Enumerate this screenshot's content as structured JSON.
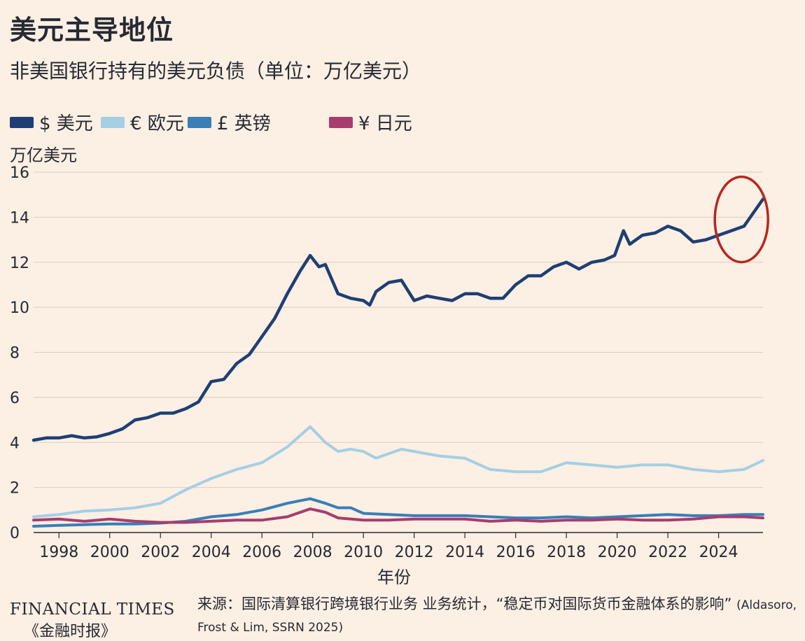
{
  "header": {
    "title": "美元主导地位",
    "subtitle": "非美国银行持有的美元负债（单位：万亿美元）"
  },
  "legend": [
    {
      "label": "$ 美元",
      "color": "#1f3f73"
    },
    {
      "label": "€ 欧元",
      "color": "#a4cfe4"
    },
    {
      "label": "£ 英镑",
      "color": "#3a7eb6"
    },
    {
      "label": "¥ 日元",
      "color": "#a63d6e"
    }
  ],
  "annotation_color": "#b5281f",
  "footer": {
    "brand": "FINANCIAL TIMES",
    "brand_cn": "《金融时报》",
    "source_cn": "来源：国际清算银行跨境银行业务  业务统计，“稳定币对国际货币金融体系的影响”",
    "source_en": "(Aldasoro, Frost & Lim, SSRN 2025)"
  },
  "chart_data": {
    "type": "line",
    "title": "美元主导地位",
    "subtitle": "非美国银行持有的美元负债（单位：万亿美元）",
    "ylabel": "万亿美元",
    "xlabel": "年份",
    "xlim": [
      1997,
      2025.75
    ],
    "ylim": [
      0,
      16
    ],
    "x_ticks": [
      "1998",
      "2000",
      "2002",
      "2004",
      "2006",
      "2008",
      "2010",
      "2012",
      "2014",
      "2016",
      "2018",
      "2020",
      "2022",
      "2024"
    ],
    "y_ticks": [
      "0",
      "2",
      "4",
      "6",
      "8",
      "10",
      "12",
      "14",
      "16"
    ],
    "grid": "horizontal",
    "legend_position": "top-left",
    "series": [
      {
        "name": "$ 美元",
        "x": [
          1997,
          1997.5,
          1998,
          1998.5,
          1999,
          1999.5,
          2000,
          2000.5,
          2001,
          2001.5,
          2002,
          2002.5,
          2003,
          2003.5,
          2004,
          2004.5,
          2005,
          2005.5,
          2006,
          2006.5,
          2007,
          2007.5,
          2007.9,
          2008.25,
          2008.5,
          2009,
          2009.5,
          2010,
          2010.25,
          2010.5,
          2011,
          2011.5,
          2012,
          2012.5,
          2013,
          2013.5,
          2014,
          2014.5,
          2015,
          2015.5,
          2016,
          2016.5,
          2017,
          2017.5,
          2018,
          2018.5,
          2019,
          2019.5,
          2019.9,
          2020.25,
          2020.5,
          2021,
          2021.5,
          2022,
          2022.25,
          2022.5,
          2023,
          2023.5,
          2024,
          2024.5,
          2025,
          2025.5,
          2025.75
        ],
        "values": [
          4.1,
          4.2,
          4.2,
          4.3,
          4.2,
          4.25,
          4.4,
          4.6,
          5.0,
          5.1,
          5.3,
          5.3,
          5.5,
          5.8,
          6.7,
          6.8,
          7.5,
          7.9,
          8.7,
          9.5,
          10.6,
          11.6,
          12.3,
          11.8,
          11.9,
          10.6,
          10.4,
          10.3,
          10.1,
          10.7,
          11.1,
          11.2,
          10.3,
          10.5,
          10.4,
          10.3,
          10.6,
          10.6,
          10.4,
          10.4,
          11.0,
          11.4,
          11.4,
          11.8,
          12.0,
          11.7,
          12.0,
          12.1,
          12.3,
          13.4,
          12.8,
          13.2,
          13.3,
          13.6,
          13.5,
          13.4,
          12.9,
          13.0,
          13.2,
          13.4,
          13.6,
          14.4,
          14.8
        ]
      },
      {
        "name": "€ 欧元",
        "x": [
          1997,
          1998,
          1999,
          2000,
          2001,
          2002,
          2003,
          2004,
          2005,
          2006,
          2007,
          2007.9,
          2008.5,
          2009,
          2009.5,
          2010,
          2010.5,
          2011,
          2011.5,
          2012,
          2013,
          2014,
          2015,
          2016,
          2017,
          2018,
          2019,
          2020,
          2021,
          2022,
          2023,
          2024,
          2025,
          2025.75
        ],
        "values": [
          0.7,
          0.8,
          0.95,
          1.0,
          1.1,
          1.3,
          1.9,
          2.4,
          2.8,
          3.1,
          3.8,
          4.7,
          4.0,
          3.6,
          3.7,
          3.6,
          3.3,
          3.5,
          3.7,
          3.6,
          3.4,
          3.3,
          2.8,
          2.7,
          2.7,
          3.1,
          3.0,
          2.9,
          3.0,
          3.0,
          2.8,
          2.7,
          2.8,
          3.2
        ]
      },
      {
        "name": "£ 英镑",
        "x": [
          1997,
          1998,
          1999,
          2000,
          2001,
          2002,
          2003,
          2004,
          2005,
          2006,
          2007,
          2007.9,
          2008.5,
          2009,
          2009.5,
          2010,
          2011,
          2012,
          2013,
          2014,
          2015,
          2016,
          2017,
          2018,
          2019,
          2020,
          2021,
          2022,
          2023,
          2024,
          2025,
          2025.75
        ],
        "values": [
          0.28,
          0.32,
          0.35,
          0.38,
          0.38,
          0.42,
          0.5,
          0.7,
          0.8,
          1.0,
          1.3,
          1.5,
          1.3,
          1.1,
          1.1,
          0.85,
          0.8,
          0.75,
          0.75,
          0.75,
          0.7,
          0.65,
          0.65,
          0.7,
          0.65,
          0.7,
          0.75,
          0.8,
          0.75,
          0.75,
          0.8,
          0.8
        ]
      },
      {
        "name": "¥ 日元",
        "x": [
          1997,
          1998,
          1999,
          2000,
          2001,
          2002,
          2003,
          2004,
          2005,
          2006,
          2007,
          2007.9,
          2008.5,
          2009,
          2010,
          2011,
          2012,
          2013,
          2014,
          2015,
          2016,
          2017,
          2018,
          2019,
          2020,
          2021,
          2022,
          2023,
          2024,
          2025,
          2025.75
        ],
        "values": [
          0.55,
          0.6,
          0.5,
          0.6,
          0.5,
          0.45,
          0.45,
          0.5,
          0.55,
          0.55,
          0.7,
          1.05,
          0.9,
          0.65,
          0.55,
          0.55,
          0.6,
          0.6,
          0.6,
          0.5,
          0.55,
          0.5,
          0.55,
          0.55,
          0.6,
          0.55,
          0.55,
          0.6,
          0.7,
          0.7,
          0.65
        ]
      }
    ]
  }
}
